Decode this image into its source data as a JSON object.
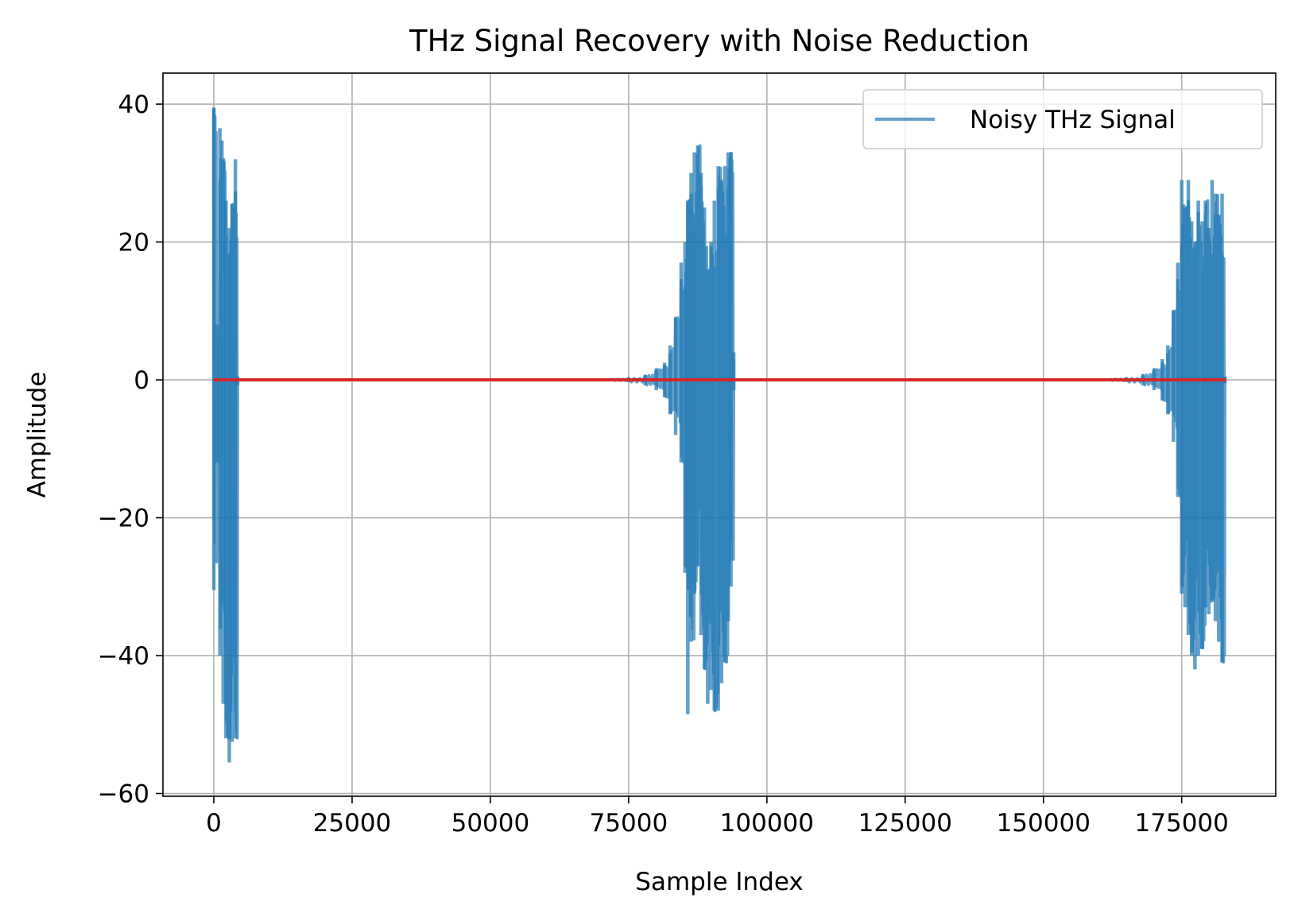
{
  "chart_data": {
    "type": "line",
    "title": "THz Signal Recovery with Noise Reduction",
    "xlabel": "Sample Index",
    "ylabel": "Amplitude",
    "xlim": [
      -9200,
      192000
    ],
    "ylim": [
      -60.4,
      44.5
    ],
    "xticks": [
      0,
      25000,
      50000,
      75000,
      100000,
      125000,
      150000,
      175000
    ],
    "xtick_labels": [
      "0",
      "25000",
      "50000",
      "75000",
      "100000",
      "125000",
      "150000",
      "175000"
    ],
    "yticks": [
      40,
      20,
      0,
      -20,
      -40,
      -60
    ],
    "ytick_labels": [
      "40",
      "20",
      "0",
      "−20",
      "−40",
      "−60"
    ],
    "grid": true,
    "legend_position": "top-right",
    "series": [
      {
        "name": "Noisy THz Signal",
        "color": "#1f77b4",
        "opacity": 0.7,
        "bursts": [
          {
            "x_start": 0,
            "x_end": 4500,
            "peaks": [
              {
                "x": 0,
                "hi": 39.5,
                "lo": -30.5
              },
              {
                "x": 600,
                "hi": 8,
                "lo": -12
              },
              {
                "x": 1100,
                "hi": 36.5,
                "lo": -40
              },
              {
                "x": 1700,
                "hi": 32,
                "lo": -47
              },
              {
                "x": 2200,
                "hi": 26,
                "lo": -52
              },
              {
                "x": 2800,
                "hi": 22,
                "lo": -55.5
              },
              {
                "x": 3300,
                "hi": 25.5,
                "lo": -52.5
              },
              {
                "x": 3900,
                "hi": 32,
                "lo": -52
              },
              {
                "x": 4300,
                "hi": 0.5,
                "lo": -0.8
              }
            ]
          },
          {
            "x_start": 70000,
            "x_end": 94500,
            "peaks": [
              {
                "x": 72000,
                "hi": 0.1,
                "lo": -0.1
              },
              {
                "x": 75000,
                "hi": 0.3,
                "lo": -0.3
              },
              {
                "x": 78000,
                "hi": 0.7,
                "lo": -0.8
              },
              {
                "x": 80000,
                "hi": 1.5,
                "lo": -1.5
              },
              {
                "x": 81500,
                "hi": 2.5,
                "lo": -2.5
              },
              {
                "x": 82500,
                "hi": 5,
                "lo": -5
              },
              {
                "x": 83500,
                "hi": 9,
                "lo": -8
              },
              {
                "x": 84500,
                "hi": 17,
                "lo": -12
              },
              {
                "x": 85200,
                "hi": 20,
                "lo": -28
              },
              {
                "x": 85700,
                "hi": 26,
                "lo": -48.5
              },
              {
                "x": 86300,
                "hi": 30,
                "lo": -38
              },
              {
                "x": 86900,
                "hi": 33,
                "lo": -31
              },
              {
                "x": 87500,
                "hi": 34,
                "lo": -27
              },
              {
                "x": 88100,
                "hi": 30,
                "lo": -37
              },
              {
                "x": 88700,
                "hi": 25,
                "lo": -42
              },
              {
                "x": 89300,
                "hi": 16,
                "lo": -47
              },
              {
                "x": 89900,
                "hi": 20,
                "lo": -45
              },
              {
                "x": 90500,
                "hi": 26,
                "lo": -48
              },
              {
                "x": 91200,
                "hi": 31,
                "lo": -48
              },
              {
                "x": 91800,
                "hi": 29,
                "lo": -44
              },
              {
                "x": 92400,
                "hi": 31,
                "lo": -41
              },
              {
                "x": 93000,
                "hi": 33,
                "lo": -35
              },
              {
                "x": 93500,
                "hi": 33,
                "lo": -30
              },
              {
                "x": 94000,
                "hi": 4,
                "lo": -1.5
              }
            ]
          },
          {
            "x_start": 160000,
            "x_end": 183000,
            "peaks": [
              {
                "x": 162000,
                "hi": 0.1,
                "lo": -0.1
              },
              {
                "x": 165000,
                "hi": 0.3,
                "lo": -0.3
              },
              {
                "x": 168000,
                "hi": 0.8,
                "lo": -0.8
              },
              {
                "x": 170000,
                "hi": 1.5,
                "lo": -1.5
              },
              {
                "x": 171500,
                "hi": 3,
                "lo": -3
              },
              {
                "x": 172500,
                "hi": 5,
                "lo": -5
              },
              {
                "x": 173500,
                "hi": 10,
                "lo": -9
              },
              {
                "x": 174300,
                "hi": 17,
                "lo": -17
              },
              {
                "x": 175000,
                "hi": 29,
                "lo": -31
              },
              {
                "x": 175600,
                "hi": 25,
                "lo": -33
              },
              {
                "x": 176200,
                "hi": 29,
                "lo": -37
              },
              {
                "x": 176800,
                "hi": 23,
                "lo": -40
              },
              {
                "x": 177400,
                "hi": 20,
                "lo": -42
              },
              {
                "x": 178000,
                "hi": 26,
                "lo": -40
              },
              {
                "x": 178700,
                "hi": 23,
                "lo": -39
              },
              {
                "x": 179300,
                "hi": 26,
                "lo": -33
              },
              {
                "x": 179900,
                "hi": 22,
                "lo": -34
              },
              {
                "x": 180500,
                "hi": 29,
                "lo": -32
              },
              {
                "x": 181100,
                "hi": 27,
                "lo": -35
              },
              {
                "x": 181700,
                "hi": 24,
                "lo": -38
              },
              {
                "x": 182300,
                "hi": 27,
                "lo": -41
              },
              {
                "x": 182800,
                "hi": 0.5,
                "lo": -0.5
              }
            ]
          }
        ]
      },
      {
        "name": "",
        "color": "#d62728",
        "opacity": 1,
        "x": [
          0,
          183000
        ],
        "y": [
          0,
          0
        ]
      }
    ]
  }
}
